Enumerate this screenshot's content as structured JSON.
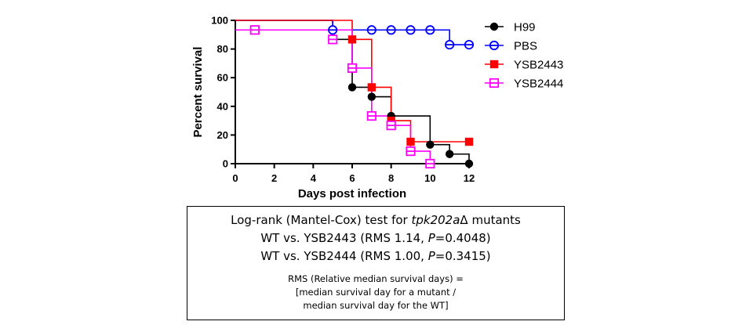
{
  "chart_data": {
    "type": "line",
    "step": true,
    "xlabel": "Days post infection",
    "ylabel": "Percent survival",
    "xlim": [
      0,
      12
    ],
    "ylim": [
      0,
      100
    ],
    "xticks": [
      "0",
      "2",
      "4",
      "6",
      "8",
      "10",
      "12"
    ],
    "yticks": [
      "0",
      "20",
      "40",
      "60",
      "80",
      "100"
    ],
    "grid": false,
    "legend_position": "right",
    "series": [
      {
        "name": "H99",
        "color": "#000000",
        "marker": "filled-circle",
        "steps": [
          [
            0,
            100
          ],
          [
            5,
            86.7
          ],
          [
            6,
            53.3
          ],
          [
            7,
            46.7
          ],
          [
            8,
            33.3
          ],
          [
            10,
            13.3
          ],
          [
            11,
            6.7
          ],
          [
            12,
            0
          ]
        ],
        "marker_points": [
          [
            5,
            86.7
          ],
          [
            6,
            53.3
          ],
          [
            7,
            46.7
          ],
          [
            8,
            33.3
          ],
          [
            10,
            13.3
          ],
          [
            11,
            6.7
          ],
          [
            12,
            0
          ]
        ]
      },
      {
        "name": "PBS",
        "color": "#0000ff",
        "marker": "open-circle-barred",
        "steps": [
          [
            0,
            100
          ],
          [
            5,
            93.3
          ],
          [
            11,
            83
          ],
          [
            12,
            83
          ]
        ],
        "marker_points": [
          [
            5,
            93.3
          ],
          [
            7,
            93.3
          ],
          [
            8,
            93.3
          ],
          [
            9,
            93.3
          ],
          [
            10,
            93.3
          ],
          [
            11,
            83
          ],
          [
            12,
            83
          ]
        ]
      },
      {
        "name": "YSB2443",
        "color": "#ff0000",
        "marker": "filled-square",
        "steps": [
          [
            0,
            100
          ],
          [
            6,
            86.7
          ],
          [
            7,
            53.3
          ],
          [
            8,
            30
          ],
          [
            9,
            15.3
          ],
          [
            12,
            15.3
          ]
        ],
        "marker_points": [
          [
            5,
            86.7
          ],
          [
            6,
            86.7
          ],
          [
            7,
            53.3
          ],
          [
            8,
            30
          ],
          [
            9,
            15.3
          ],
          [
            12,
            15.3
          ]
        ]
      },
      {
        "name": "YSB2444",
        "color": "#ff00ff",
        "marker": "open-square-barred",
        "steps": [
          [
            0,
            93.3
          ],
          [
            6,
            66.7
          ],
          [
            7,
            33.3
          ],
          [
            8,
            26.7
          ],
          [
            9,
            8.7
          ],
          [
            10,
            0
          ]
        ],
        "marker_points": [
          [
            1,
            93.3
          ],
          [
            5,
            86.7
          ],
          [
            6,
            66.7
          ],
          [
            7,
            33.3
          ],
          [
            8,
            26.7
          ],
          [
            9,
            8.7
          ],
          [
            10,
            0
          ]
        ]
      }
    ]
  },
  "stats": {
    "line1": {
      "prefix": "Log-rank (Mantel-Cox) test for ",
      "italic": "tpk202a",
      "suffix": "Δ mutants"
    },
    "line2": {
      "prefix": "WT vs. YSB2443 (RMS 1.14, ",
      "p": "P",
      "suffix": "=0.4048)"
    },
    "line3": {
      "prefix": "WT vs. YSB2444 (RMS 1.00, ",
      "p": "P",
      "suffix": "=0.3415)"
    },
    "note1": "RMS (Relative median survival days) =",
    "note2": "[median survival day for a mutant  /",
    "note3": "median survival day for the WT]"
  }
}
